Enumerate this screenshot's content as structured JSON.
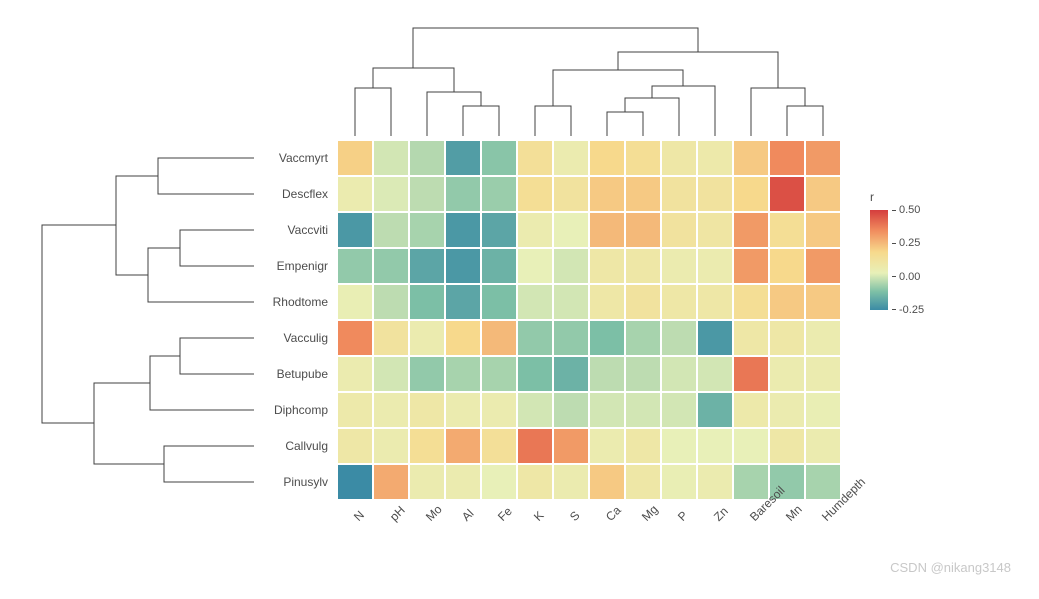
{
  "type": "clustered-heatmap",
  "rows": [
    "Vaccmyrt",
    "Descflex",
    "Vaccviti",
    "Empenigr",
    "Rhodtome",
    "Vacculig",
    "Betupube",
    "Diphcomp",
    "Callvulg",
    "Pinusylv"
  ],
  "cols": [
    "N",
    "pH",
    "Mo",
    "Al",
    "Fe",
    "K",
    "S",
    "Ca",
    "Mg",
    "P",
    "Zn",
    "Baresoil",
    "Mn",
    "Humdepth"
  ],
  "values": [
    [
      0.28,
      -0.05,
      -0.12,
      -0.38,
      -0.22,
      0.18,
      0.05,
      0.25,
      0.2,
      0.1,
      0.08,
      0.3,
      0.5,
      0.45
    ],
    [
      0.05,
      -0.03,
      -0.1,
      -0.2,
      -0.18,
      0.2,
      0.15,
      0.3,
      0.3,
      0.15,
      0.15,
      0.25,
      0.65,
      0.3
    ],
    [
      -0.4,
      -0.1,
      -0.15,
      -0.4,
      -0.35,
      0.05,
      0.0,
      0.35,
      0.35,
      0.15,
      0.12,
      0.45,
      0.2,
      0.3
    ],
    [
      -0.2,
      -0.2,
      -0.35,
      -0.4,
      -0.3,
      0.0,
      -0.05,
      0.1,
      0.1,
      0.05,
      0.05,
      0.45,
      0.25,
      0.45
    ],
    [
      0.02,
      -0.1,
      -0.25,
      -0.35,
      -0.25,
      -0.05,
      -0.05,
      0.1,
      0.15,
      0.1,
      0.1,
      0.2,
      0.3,
      0.3
    ],
    [
      0.5,
      0.15,
      0.05,
      0.25,
      0.35,
      -0.2,
      -0.2,
      -0.25,
      -0.15,
      -0.1,
      -0.4,
      0.1,
      0.1,
      0.05
    ],
    [
      0.05,
      -0.05,
      -0.2,
      -0.15,
      -0.15,
      -0.25,
      -0.3,
      -0.1,
      -0.1,
      -0.05,
      -0.05,
      0.55,
      0.05,
      0.05
    ],
    [
      0.08,
      0.05,
      0.1,
      0.05,
      0.05,
      -0.05,
      -0.1,
      -0.05,
      -0.05,
      -0.05,
      -0.3,
      0.08,
      0.05,
      0.02
    ],
    [
      0.1,
      0.05,
      0.2,
      0.4,
      0.18,
      0.55,
      0.45,
      0.05,
      0.1,
      0.0,
      0.0,
      0.0,
      0.1,
      0.05
    ],
    [
      -0.45,
      0.4,
      0.05,
      0.05,
      0.0,
      0.1,
      0.05,
      0.3,
      0.1,
      0.02,
      0.05,
      -0.15,
      -0.2,
      -0.15
    ]
  ],
  "colorscale": {
    "min": -0.45,
    "max": 0.7,
    "stops": [
      {
        "v": -0.45,
        "c": "#3b8ba5"
      },
      {
        "v": -0.25,
        "c": "#7cbfa6"
      },
      {
        "v": 0.0,
        "c": "#e8f0b8"
      },
      {
        "v": 0.25,
        "c": "#f7d98c"
      },
      {
        "v": 0.5,
        "c": "#f08a5d"
      },
      {
        "v": 0.7,
        "c": "#d43d3d"
      }
    ]
  },
  "legend": {
    "title": "r",
    "ticks": [
      0.5,
      0.25,
      0.0,
      -0.25
    ],
    "bar_gradient": "linear-gradient(to bottom,#d43d3d 0%,#f08a5d 20%,#f7d98c 42%,#e8f0b8 63%,#7cbfa6 82%,#3b8ba5 100%)"
  },
  "label_fontsize": 12,
  "label_color": "#4d4d4d",
  "cell_size": 36,
  "background_color": "#ffffff",
  "cell_border": "#ffffff",
  "watermark": "CSDN @nikang3148",
  "row_dendro": {
    "merges": [
      {
        "a": "Vaccviti",
        "b": "Empenigr",
        "h": 0.35
      },
      {
        "a": "Vaccmyrt",
        "b": "Descflex",
        "h": 0.45
      },
      {
        "a": [
          "Vaccviti",
          "Empenigr"
        ],
        "b": "Rhodtome",
        "h": 0.5
      },
      {
        "a": [
          "Vaccmyrt",
          "Descflex"
        ],
        "b": [
          "Vaccviti",
          "Empenigr",
          "Rhodtome"
        ],
        "h": 0.62
      },
      {
        "a": "Vacculig",
        "b": "Betupube",
        "h": 0.35
      },
      {
        "a": [
          "Vacculig",
          "Betupube"
        ],
        "b": "Diphcomp",
        "h": 0.48
      },
      {
        "a": "Callvulg",
        "b": "Pinusylv",
        "h": 0.42
      },
      {
        "a": [
          "Vacculig",
          "Betupube",
          "Diphcomp"
        ],
        "b": [
          "Callvulg",
          "Pinusylv"
        ],
        "h": 0.72
      },
      {
        "a": "TOP",
        "b": "BOT",
        "h": 1.0
      }
    ]
  },
  "col_dendro": {
    "merges": [
      {
        "a": "Al",
        "b": "Fe",
        "h": 0.25
      },
      {
        "a": "Mo",
        "b": [
          "Al",
          "Fe"
        ],
        "h": 0.38
      },
      {
        "a": "N",
        "b": "pH",
        "h": 0.4
      },
      {
        "a": [
          "N",
          "pH"
        ],
        "b": [
          "Mo",
          "Al",
          "Fe"
        ],
        "h": 0.58
      },
      {
        "a": "K",
        "b": "S",
        "h": 0.25
      },
      {
        "a": "Ca",
        "b": "Mg",
        "h": 0.2
      },
      {
        "a": [
          "Ca",
          "Mg"
        ],
        "b": "P",
        "h": 0.32
      },
      {
        "a": [
          "Ca",
          "Mg",
          "P"
        ],
        "b": "Zn",
        "h": 0.42
      },
      {
        "a": [
          "K",
          "S"
        ],
        "b": [
          "Ca",
          "Mg",
          "P",
          "Zn"
        ],
        "h": 0.55
      },
      {
        "a": "Mn",
        "b": "Humdepth",
        "h": 0.25
      },
      {
        "a": "Baresoil",
        "b": [
          "Mn",
          "Humdepth"
        ],
        "h": 0.4
      },
      {
        "a": [
          "K",
          "S",
          "Ca",
          "Mg",
          "P",
          "Zn"
        ],
        "b": [
          "Baresoil",
          "Mn",
          "Humdepth"
        ],
        "h": 0.7
      },
      {
        "a": "LEFT",
        "b": "RIGHT",
        "h": 1.0
      }
    ]
  }
}
